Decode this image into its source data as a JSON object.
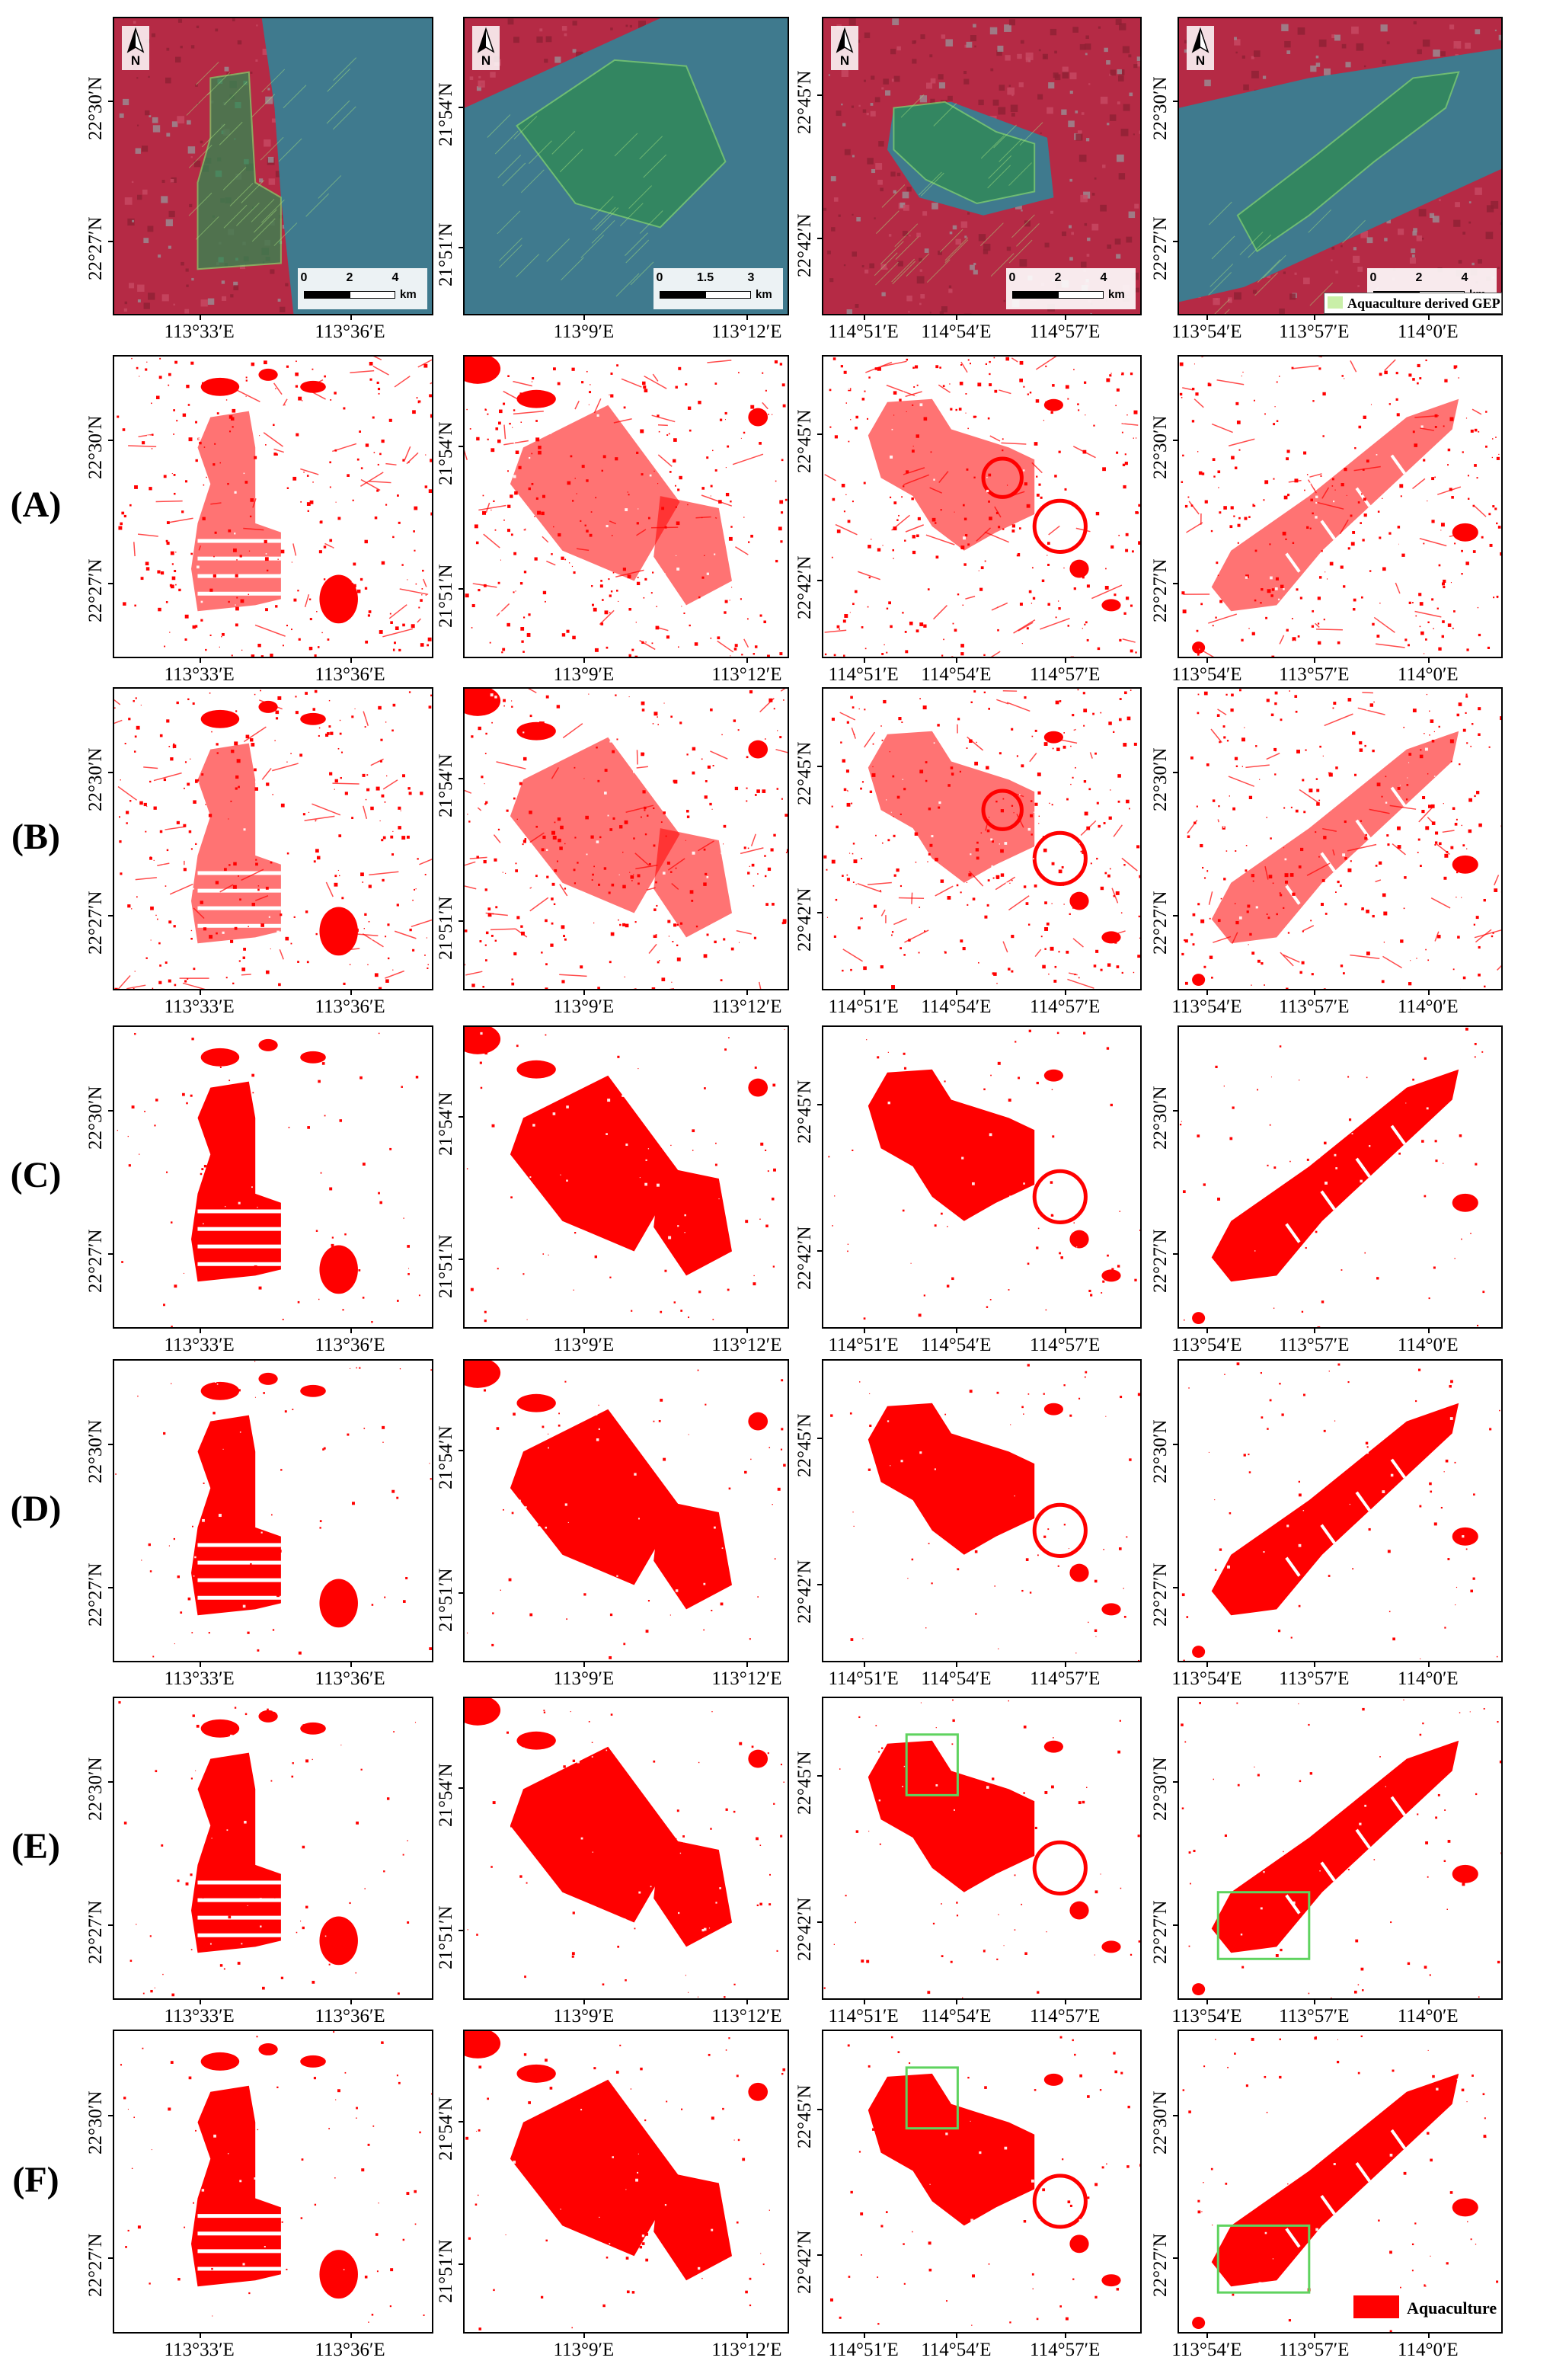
{
  "row_labels": [
    "(A)",
    "(B)",
    "(C)",
    "(D)",
    "(E)",
    "(F)"
  ],
  "columns": [
    {
      "region": "col1",
      "x_ticks": [
        "113°33′E",
        "113°36′E"
      ],
      "y_ticks": [
        "22°30′N",
        "22°27′N"
      ],
      "scale_labels": [
        "0",
        "2",
        "4"
      ],
      "scale_unit": "km"
    },
    {
      "region": "col2",
      "x_ticks": [
        "113°9′E",
        "113°12′E"
      ],
      "y_ticks": [
        "21°54′N",
        "21°51′N"
      ],
      "scale_labels": [
        "0",
        "1.5",
        "3"
      ],
      "scale_unit": "km"
    },
    {
      "region": "col3",
      "x_ticks": [
        "114°51′E",
        "114°54′E",
        "114°57′E"
      ],
      "y_ticks": [
        "22°45′N",
        "22°42′N"
      ],
      "scale_labels": [
        "0",
        "2",
        "4"
      ],
      "scale_unit": "km"
    },
    {
      "region": "col4",
      "x_ticks": [
        "113°54′E",
        "113°57′E",
        "114°0′E"
      ],
      "y_ticks": [
        "22°30′N",
        "22°27′N"
      ],
      "scale_labels": [
        "0",
        "2",
        "4"
      ],
      "scale_unit": "km"
    }
  ],
  "north_label": "N",
  "top_legend": {
    "label": "Aquaculture derived GEP",
    "color": "#c9efa8"
  },
  "bottom_legend": {
    "label": "Aquaculture",
    "color": "#ff0000"
  },
  "colors": {
    "aquaculture": "#ff0000",
    "highlight_box": "#5fd35f",
    "water": "#3f7a8e",
    "vegetation": "#b52a45",
    "gep_overlay": "#2f8a52"
  },
  "highlight_boxes_rows": [
    "(E)",
    "(F)"
  ]
}
